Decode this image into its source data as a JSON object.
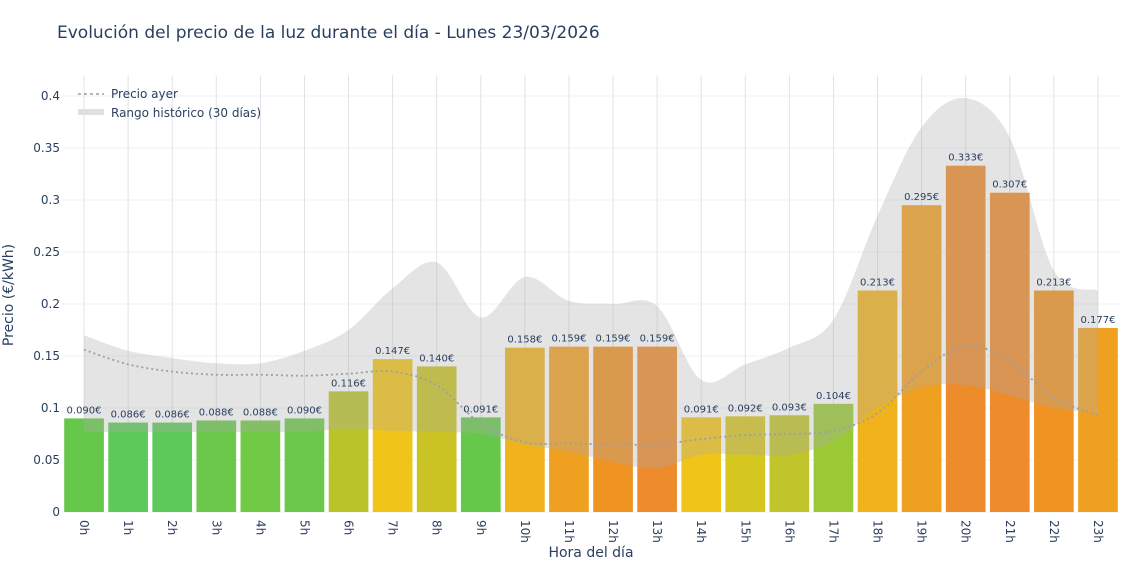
{
  "chart_data": {
    "type": "bar",
    "title": "Evolución del precio de la luz durante el día - Lunes 23/03/2026",
    "xlabel": "Hora del día",
    "ylabel": "Precio (€/kWh)",
    "ylim": [
      0,
      0.42
    ],
    "yticks": [
      0,
      0.05,
      0.1,
      0.15,
      0.2,
      0.25,
      0.3,
      0.35,
      0.4
    ],
    "ytick_labels": [
      "0",
      "0.05",
      "0.1",
      "0.15",
      "0.2",
      "0.25",
      "0.3",
      "0.35",
      "0.4"
    ],
    "grid": true,
    "legend_position": "top-left",
    "categories": [
      "0h",
      "1h",
      "2h",
      "3h",
      "4h",
      "5h",
      "6h",
      "7h",
      "8h",
      "9h",
      "10h",
      "11h",
      "12h",
      "13h",
      "14h",
      "15h",
      "16h",
      "17h",
      "18h",
      "19h",
      "20h",
      "21h",
      "22h",
      "23h"
    ],
    "values": [
      0.09,
      0.086,
      0.086,
      0.088,
      0.088,
      0.09,
      0.116,
      0.147,
      0.14,
      0.091,
      0.158,
      0.159,
      0.159,
      0.159,
      0.091,
      0.092,
      0.093,
      0.104,
      0.213,
      0.295,
      0.333,
      0.307,
      0.213,
      0.177
    ],
    "data_labels": [
      "0.090€",
      "0.086€",
      "0.086€",
      "0.088€",
      "0.088€",
      "0.090€",
      "0.116€",
      "0.147€",
      "0.140€",
      "0.091€",
      "0.158€",
      "0.159€",
      "0.159€",
      "0.159€",
      "0.091€",
      "0.092€",
      "0.093€",
      "0.104€",
      "0.213€",
      "0.295€",
      "0.333€",
      "0.307€",
      "0.213€",
      "0.177€"
    ],
    "bar_colors": [
      "#66c84a",
      "#5dc95a",
      "#5dc95a",
      "#6bc84a",
      "#72c946",
      "#6cc84a",
      "#b9c42a",
      "#f0c419",
      "#c9c424",
      "#66c84a",
      "#f0b31c",
      "#f0a020",
      "#ef9323",
      "#ee8b2a",
      "#f0c419",
      "#d6c620",
      "#bfc52a",
      "#9ac935",
      "#f0b31c",
      "#f0a020",
      "#ee8b2a",
      "#ee8b2a",
      "#ef9323",
      "#f0a020"
    ],
    "series": [
      {
        "name": "Precio ayer",
        "style": "dotted-line",
        "color": "#9aa0a6",
        "values": [
          0.156,
          0.142,
          0.135,
          0.132,
          0.132,
          0.131,
          0.133,
          0.135,
          0.122,
          0.085,
          0.067,
          0.066,
          0.065,
          0.065,
          0.07,
          0.074,
          0.075,
          0.078,
          0.095,
          0.135,
          0.16,
          0.145,
          0.11,
          0.093
        ]
      },
      {
        "name": "Rango histórico (30 días)",
        "style": "band",
        "color": "#b4b4b4",
        "upper": [
          0.17,
          0.155,
          0.148,
          0.143,
          0.143,
          0.155,
          0.175,
          0.215,
          0.24,
          0.187,
          0.226,
          0.203,
          0.2,
          0.198,
          0.127,
          0.142,
          0.158,
          0.185,
          0.285,
          0.37,
          0.398,
          0.36,
          0.232,
          0.213
        ],
        "lower": [
          0.077,
          0.077,
          0.077,
          0.077,
          0.077,
          0.077,
          0.08,
          0.078,
          0.077,
          0.075,
          0.065,
          0.058,
          0.048,
          0.042,
          0.055,
          0.055,
          0.055,
          0.068,
          0.1,
          0.12,
          0.122,
          0.112,
          0.1,
          0.095
        ]
      }
    ]
  }
}
